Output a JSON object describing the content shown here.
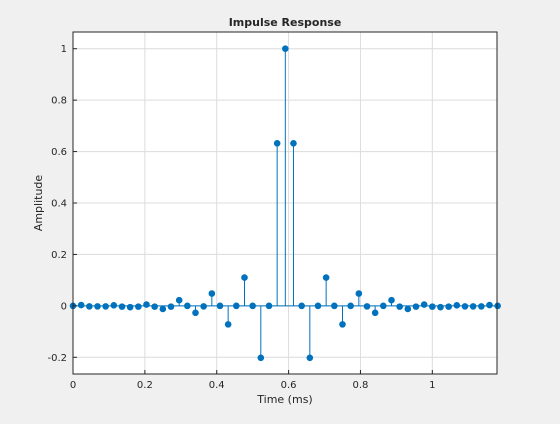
{
  "colors": {
    "figure_background": "#f0f0f0",
    "axes_background": "#ffffff",
    "axis": "#262626",
    "grid": "#dcdcdc",
    "series": "#0072bd"
  },
  "chart_data": {
    "type": "stem",
    "title": "Impulse Response",
    "xlabel": "Time (ms)",
    "ylabel": "Amplitude",
    "xlim": [
      0,
      1.18
    ],
    "ylim": [
      -0.265,
      1.065
    ],
    "grid": true,
    "marker": "filled-circle",
    "x_ticks": [
      0,
      0.2,
      0.4,
      0.6,
      0.8,
      1
    ],
    "x_tick_labels": [
      "0",
      "0.2",
      "0.4",
      "0.6",
      "0.8",
      "1"
    ],
    "y_ticks": [
      -0.2,
      0,
      0.2,
      0.4,
      0.6,
      0.8,
      1
    ],
    "y_tick_labels": [
      "-0.2",
      "0",
      "0.2",
      "0.4",
      "0.6",
      "0.8",
      "1"
    ],
    "series": [
      {
        "x": [
          0,
          0.0227,
          0.0455,
          0.0682,
          0.0909,
          0.1136,
          0.1364,
          0.1591,
          0.1818,
          0.2045,
          0.2273,
          0.25,
          0.2727,
          0.2955,
          0.3182,
          0.3409,
          0.3636,
          0.3864,
          0.4091,
          0.4318,
          0.4545,
          0.4773,
          0.5,
          0.5227,
          0.5455,
          0.5682,
          0.5909,
          0.6136,
          0.6364,
          0.6591,
          0.6818,
          0.7045,
          0.7273,
          0.75,
          0.7727,
          0.7955,
          0.8182,
          0.8409,
          0.8636,
          0.8864,
          0.9091,
          0.9318,
          0.9545,
          0.9773,
          1.0,
          1.0227,
          1.0455,
          1.0682,
          1.0909,
          1.1136,
          1.1364,
          1.1591,
          1.1818
        ],
        "y": [
          0,
          0.003,
          -0.002,
          -0.002,
          -0.002,
          0.002,
          -0.003,
          -0.005,
          -0.003,
          0.005,
          -0.003,
          -0.012,
          -0.003,
          0.022,
          0,
          -0.027,
          -0.002,
          0.048,
          0,
          -0.072,
          0,
          0.11,
          0,
          -0.202,
          0,
          0.632,
          1.0,
          0.632,
          0,
          -0.202,
          0,
          0.11,
          0,
          -0.072,
          0,
          0.048,
          -0.002,
          -0.027,
          0,
          0.022,
          -0.003,
          -0.012,
          -0.003,
          0.005,
          -0.003,
          -0.005,
          -0.003,
          0.002,
          -0.002,
          -0.002,
          -0.002,
          0.003,
          0
        ]
      }
    ]
  }
}
